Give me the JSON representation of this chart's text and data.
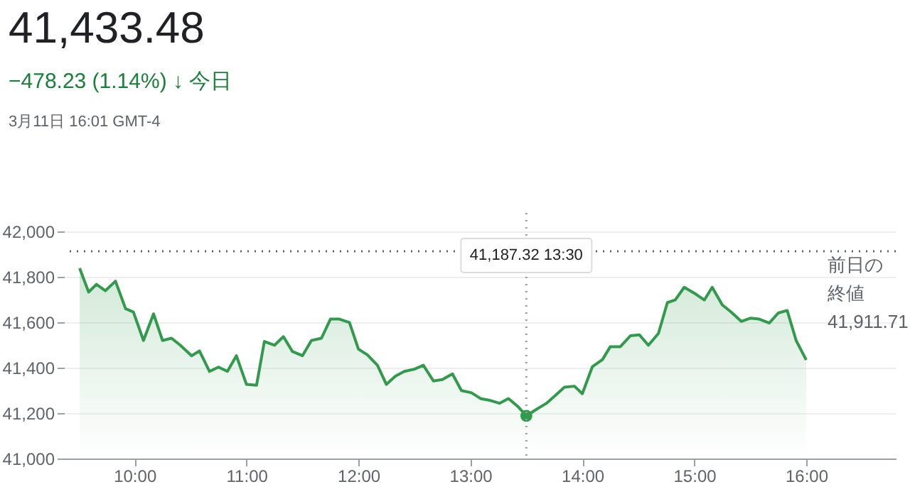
{
  "chart_data": {
    "type": "area",
    "title": "41,433.48",
    "subtitle": "−478.23 (1.14%) ↓ 今日",
    "annotations": [
      "3月11日 16:01 GMT-4",
      "41,187.32 13:30"
    ],
    "x": [
      9.51,
      9.59,
      9.66,
      9.74,
      9.83,
      9.92,
      9.99,
      10.08,
      10.17,
      10.25,
      10.33,
      10.41,
      10.51,
      10.58,
      10.67,
      10.75,
      10.83,
      10.91,
      11.0,
      11.09,
      11.16,
      11.25,
      11.33,
      11.41,
      11.5,
      11.58,
      11.67,
      11.75,
      11.83,
      11.92,
      12.0,
      12.08,
      12.17,
      12.25,
      12.33,
      12.41,
      12.5,
      12.58,
      12.67,
      12.75,
      12.84,
      12.92,
      13.01,
      13.09,
      13.18,
      13.26,
      13.34,
      13.43,
      13.5,
      13.59,
      13.68,
      13.76,
      13.84,
      13.93,
      14.0,
      14.09,
      14.18,
      14.25,
      14.34,
      14.43,
      14.51,
      14.59,
      14.68,
      14.76,
      14.83,
      14.91,
      15.01,
      15.09,
      15.16,
      15.25,
      15.33,
      15.42,
      15.5,
      15.58,
      15.67,
      15.75,
      15.83,
      15.91,
      16.0
    ],
    "series": [
      {
        "color": "#329a4c",
        "values": [
          41837,
          41732,
          41766,
          41738,
          41780,
          41659,
          41644,
          41519,
          41636,
          41519,
          41529,
          41498,
          41452,
          41473,
          41383,
          41402,
          41383,
          41452,
          41326,
          41322,
          41515,
          41498,
          41536,
          41471,
          41452,
          41519,
          41529,
          41613,
          41613,
          41598,
          41481,
          41456,
          41410,
          41326,
          41362,
          41383,
          41393,
          41410,
          41341,
          41347,
          41372,
          41299,
          41289,
          41264,
          41255,
          41243,
          41264,
          41226,
          41187.32,
          41216,
          41243,
          41278,
          41314,
          41318,
          41285,
          41404,
          41435,
          41492,
          41492,
          41540,
          41544,
          41498,
          41550,
          41686,
          41697,
          41753,
          41724,
          41697,
          41753,
          41676,
          41644,
          41603,
          41617,
          41613,
          41596,
          41640,
          41651,
          41519,
          41433.48
        ]
      },
      {
        "type": "scatter",
        "color": "#329a4c",
        "marker": "circle",
        "x": [
          13.5
        ],
        "values": [
          41187.32
        ]
      }
    ],
    "xlim": [
      9.37,
      16.8
    ],
    "xticks": [
      {
        "value": 10,
        "label": "10:00"
      },
      {
        "value": 11,
        "label": "11:00"
      },
      {
        "value": 12,
        "label": "12:00"
      },
      {
        "value": 13,
        "label": "13:00"
      },
      {
        "value": 14,
        "label": "14:00"
      },
      {
        "value": 15,
        "label": "15:00"
      },
      {
        "value": 16,
        "label": "16:00"
      }
    ],
    "ylim": [
      41000,
      42080
    ],
    "yticks": [
      {
        "value": 41000,
        "label": "41,000"
      },
      {
        "value": 41200,
        "label": "41,200"
      },
      {
        "value": 41400,
        "label": "41,400"
      },
      {
        "value": 41600,
        "label": "41,600"
      },
      {
        "value": 41800,
        "label": "41,800"
      },
      {
        "value": 42000,
        "label": "42,000"
      }
    ],
    "grid": "y",
    "ref_lines": [
      {
        "axis": "y",
        "value": 41911.71,
        "label": "前日の終値 41,911.71",
        "color": "#5f6368",
        "line_style": "dotted"
      },
      {
        "axis": "x",
        "value": 13.5,
        "label": null,
        "color": "#9aa0a6",
        "line_style": "dotted"
      }
    ]
  }
}
